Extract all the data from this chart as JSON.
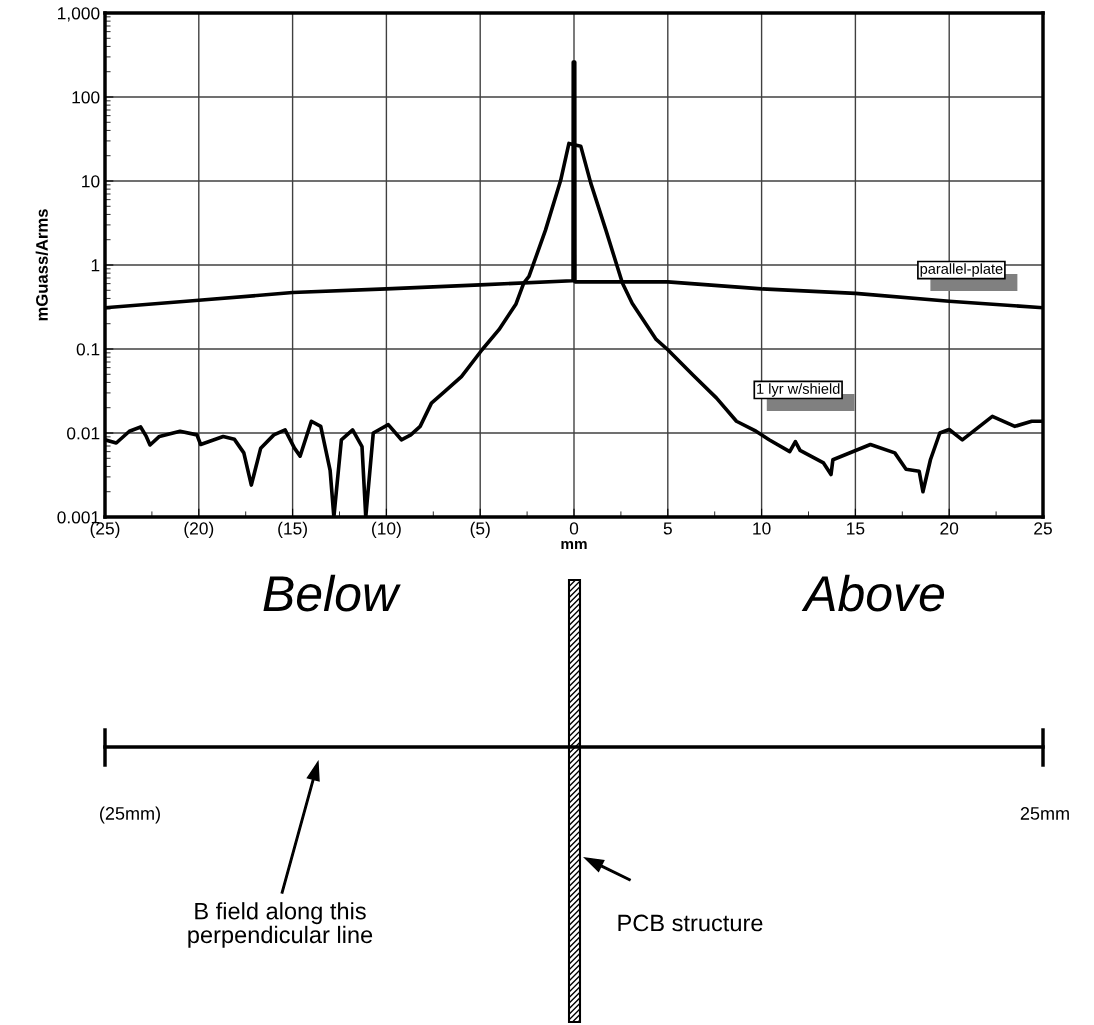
{
  "chart_data": {
    "type": "line",
    "xlabel": "mm",
    "ylabel": "mGuass/Arms",
    "log": "y",
    "grid": true,
    "legend": false,
    "marker": "none",
    "line_style": "solid",
    "xlim": [
      -25,
      25
    ],
    "xticks": [
      {
        "value": -25,
        "label": "(25)"
      },
      {
        "value": -20,
        "label": "(20)"
      },
      {
        "value": -15,
        "label": "(15)"
      },
      {
        "value": -10,
        "label": "(10)"
      },
      {
        "value": -5,
        "label": "(5)"
      },
      0,
      5,
      10,
      15,
      20,
      25
    ],
    "ylim": [
      0.001,
      1000
    ],
    "yticks": [
      0.001,
      0.01,
      0.1,
      1,
      10,
      100,
      {
        "value": 1000,
        "label": "1,000"
      }
    ],
    "series": [
      {
        "name": "parallel-plate",
        "color": "#000000",
        "x": [
          -25,
          -20,
          -15,
          -10,
          -5,
          -0.1,
          -0.05,
          -0.04,
          0.04,
          0.05,
          0.1,
          5,
          10,
          15,
          20,
          25
        ],
        "values": [
          0.31,
          0.38,
          0.47,
          0.52,
          0.58,
          0.65,
          0.65,
          260,
          260,
          0.63,
          0.63,
          0.63,
          0.52,
          0.46,
          0.37,
          0.31
        ]
      },
      {
        "name": "1 lyr w/shield",
        "color": "#000000",
        "x": [
          -25,
          -24.4,
          -23.7,
          -23.1,
          -22.8,
          -22.6,
          -22.1,
          -21.0,
          -20.1,
          -19.9,
          -18.7,
          -18.1,
          -17.6,
          -17.2,
          -16.7,
          -16.0,
          -15.4,
          -14.9,
          -14.6,
          -14.0,
          -13.5,
          -13.0,
          -12.8,
          -12.4,
          -11.8,
          -11.3,
          -11.1,
          -10.7,
          -9.9,
          -9.2,
          -8.7,
          -8.2,
          -7.6,
          -6.9,
          -6.0,
          -4.9,
          -4.0,
          -3.1,
          -2.68,
          -2.4,
          -1.52,
          -0.71,
          -0.27,
          0.36,
          0.89,
          1.7,
          2.58,
          3.1,
          4.38,
          5.0,
          6.34,
          7.6,
          8.66,
          9.7,
          10.4,
          11.5,
          11.8,
          12.05,
          13.3,
          13.7,
          13.8,
          15.8,
          17.1,
          17.7,
          18.4,
          18.6,
          19.0,
          19.5,
          20.0,
          20.7,
          22.3,
          23.5,
          24.4,
          25.0
        ],
        "values": [
          0.0083,
          0.0076,
          0.0105,
          0.0118,
          0.0091,
          0.0072,
          0.0091,
          0.0105,
          0.0095,
          0.0073,
          0.0091,
          0.0084,
          0.0058,
          0.0024,
          0.0066,
          0.0095,
          0.0109,
          0.0066,
          0.0053,
          0.0138,
          0.012,
          0.0036,
          0.001,
          0.0083,
          0.0109,
          0.0069,
          0.001,
          0.01,
          0.0126,
          0.0083,
          0.0095,
          0.012,
          0.0227,
          0.031,
          0.047,
          0.098,
          0.17,
          0.34,
          0.61,
          0.73,
          2.6,
          10.2,
          28,
          26,
          9.5,
          2.6,
          0.61,
          0.35,
          0.13,
          0.098,
          0.049,
          0.026,
          0.0138,
          0.0105,
          0.0083,
          0.006,
          0.0079,
          0.0062,
          0.0044,
          0.0032,
          0.0048,
          0.0073,
          0.0058,
          0.0037,
          0.0035,
          0.002,
          0.0048,
          0.01,
          0.011,
          0.0083,
          0.0158,
          0.012,
          0.0138,
          0.0138
        ]
      }
    ],
    "annotations": [
      "Below",
      "Above",
      "(25mm)",
      "25mm",
      "B field along this\nperpendicular line",
      "PCB structure"
    ]
  }
}
